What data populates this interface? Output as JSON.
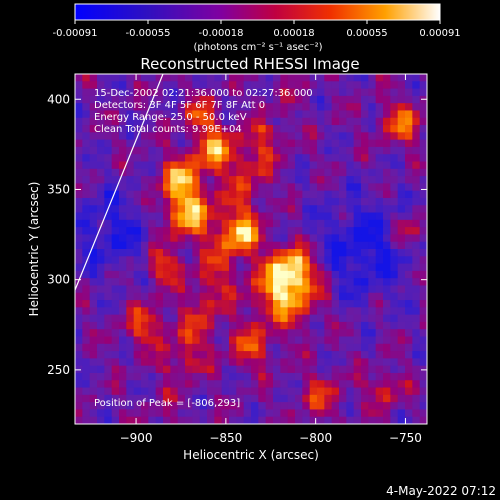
{
  "chart_data": {
    "type": "heatmap",
    "title": "Reconstructed RHESSI Image",
    "xlabel": "Heliocentric X (arcsec)",
    "ylabel": "Heliocentric Y (arcsec)",
    "xlim": [
      -934,
      -738
    ],
    "ylim": [
      220,
      414
    ],
    "x_ticks": [
      {
        "value": -900,
        "label": "−900"
      },
      {
        "value": -850,
        "label": "−850"
      },
      {
        "value": -800,
        "label": "−800"
      },
      {
        "value": -750,
        "label": "−750"
      }
    ],
    "y_ticks": [
      {
        "value": 250,
        "label": "250"
      },
      {
        "value": 300,
        "label": "300"
      },
      {
        "value": 350,
        "label": "350"
      },
      {
        "value": 400,
        "label": "400"
      }
    ],
    "annotations": [
      "15-Dec-2002 02:21:36.000 to 02:27:36.000",
      "Detectors: 3F 4F 5F 6F 7F 8F Att 0",
      "Energy Range: 25.0 - 50.0 keV",
      "Clean   Total counts: 9.99E+04",
      "Position of Peak = [-806,293]"
    ],
    "colorbar": {
      "min": -0.00091,
      "max": 0.00091,
      "tick_labels": [
        "-0.00091",
        "-0.00055",
        "-0.00018",
        "0.00018",
        "0.00055",
        "0.00091"
      ],
      "unit_label": "(photons cm⁻² s⁻¹ asec⁻²)",
      "colors": [
        "#0000ff",
        "#4400aa",
        "#7a00b0",
        "#b00080",
        "#e01000",
        "#ff7000",
        "#ffc000",
        "#ffffff"
      ]
    }
  },
  "footer": {
    "timestamp": "4-May-2022 07:12"
  }
}
